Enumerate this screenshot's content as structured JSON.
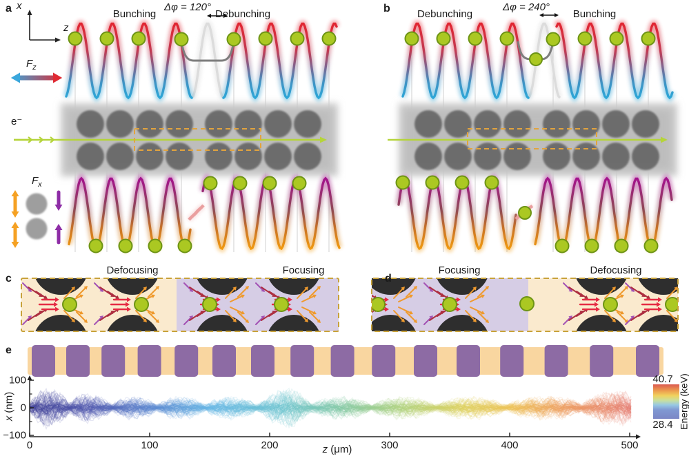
{
  "panel_a": {
    "letter": "a",
    "bunching": "Bunching",
    "phase": "Δφ = 120°",
    "debunching": "Debunching"
  },
  "panel_b": {
    "letter": "b",
    "debunching": "Debunching",
    "phase": "Δφ = 240°",
    "bunching": "Bunching"
  },
  "panel_c": {
    "letter": "c",
    "left_label": "Defocusing",
    "right_label": "Focusing"
  },
  "panel_d": {
    "letter": "d",
    "left_label": "Focusing",
    "right_label": "Defocusing"
  },
  "panel_e": {
    "letter": "e"
  },
  "coord_axes": {
    "x": "x",
    "z": "z"
  },
  "force_z": {
    "symbol": "F",
    "subscript": "z"
  },
  "force_x": {
    "symbol": "F",
    "subscript": "x"
  },
  "electron_label": "e⁻",
  "axis_labels": {
    "x_var": "z",
    "x_unit": " (μm)",
    "y_var": "x",
    "y_unit": " (nm)"
  },
  "chart_data": {
    "type": "line",
    "title": "",
    "xlabel": "z (μm)",
    "ylabel": "x (nm)",
    "xlim": [
      0,
      500
    ],
    "ylim": [
      -100,
      100
    ],
    "xticks": [
      0,
      100,
      200,
      300,
      400,
      500
    ],
    "yticks": [
      100,
      0,
      -100
    ],
    "ytick_labels": [
      "100",
      "0",
      "−100"
    ],
    "grid": false,
    "colorbar": {
      "label": "Energy (keV)",
      "max": "40.7",
      "min": "28.4"
    },
    "description": "Bundle of electron trajectories x(z) breathing between focusing nodes, excursion within ±100 nm; color encodes electron energy rising monotonically from 28.4 keV at z=0 to 40.7 keV at z=500 μm"
  },
  "colors": {
    "wave_red": "#e5242e",
    "wave_blue": "#2aa9da",
    "wave_purple": "#a50f90",
    "wave_orange": "#f49d0e",
    "ghost": "#dcdcdc",
    "connector_gray": "#7d7d7d",
    "slip_pink": "#ea9f9f",
    "electron_fill": "#abc822",
    "electron_stroke": "#6d9415",
    "beam_green": "#b5d43b",
    "structure_gray": "#c9c9c9",
    "pillar_gray": "#5f5f5f",
    "dashed_box": "#e2a43e",
    "dashed_border": "#c8a23a",
    "cream_bg": "#faeace",
    "lavender_bg": "#d6cde5",
    "cell_pillar": "#2e2e2e",
    "arrow_purple": "#a352b4",
    "arrow_darkred": "#ad2f40",
    "arrow_crimson": "#e52b44",
    "arrow_orange": "#ef9a2e",
    "strip_orange": "#f9d6a0",
    "strip_purple": "#8d6ba4",
    "axis_black": "#222222",
    "fz_left": "#3aa7dc",
    "fz_right": "#e02a33",
    "fx_orange": "#f5a123",
    "fx_purple": "#8e2da6",
    "fx_circle": "#9e9e9e",
    "vline_gray": "#ababab",
    "topwave_stops": [
      [
        "0",
        "#e5242e"
      ],
      [
        "0.38",
        "#c23a52"
      ],
      [
        "0.58",
        "#7f6590"
      ],
      [
        "0.78",
        "#3f93c4"
      ],
      [
        "1",
        "#2aa9da"
      ]
    ],
    "botwave_stops": [
      [
        "0",
        "#a50f90"
      ],
      [
        "0.45",
        "#8f4a55"
      ],
      [
        "0.70",
        "#c97326"
      ],
      [
        "1",
        "#f49d0e"
      ]
    ],
    "energy_stops": [
      [
        "0",
        "#3d3d94"
      ],
      [
        "0.10",
        "#5058ae"
      ],
      [
        "0.20",
        "#5b86cf"
      ],
      [
        "0.30",
        "#66b6e4"
      ],
      [
        "0.42",
        "#6ec4cf"
      ],
      [
        "0.52",
        "#85c9a4"
      ],
      [
        "0.62",
        "#b1d27e"
      ],
      [
        "0.72",
        "#ddd05e"
      ],
      [
        "0.80",
        "#ecc258"
      ],
      [
        "0.88",
        "#eda060"
      ],
      [
        "1",
        "#e47c72"
      ]
    ],
    "colorbar_stops": [
      [
        "0",
        "#db5a50"
      ],
      [
        "0.18",
        "#ec9b4e"
      ],
      [
        "0.33",
        "#f0d35e"
      ],
      [
        "0.47",
        "#c8dfa0"
      ],
      [
        "0.60",
        "#97c8e3"
      ],
      [
        "0.74",
        "#8099d3"
      ],
      [
        "1",
        "#7b86c5"
      ]
    ]
  }
}
